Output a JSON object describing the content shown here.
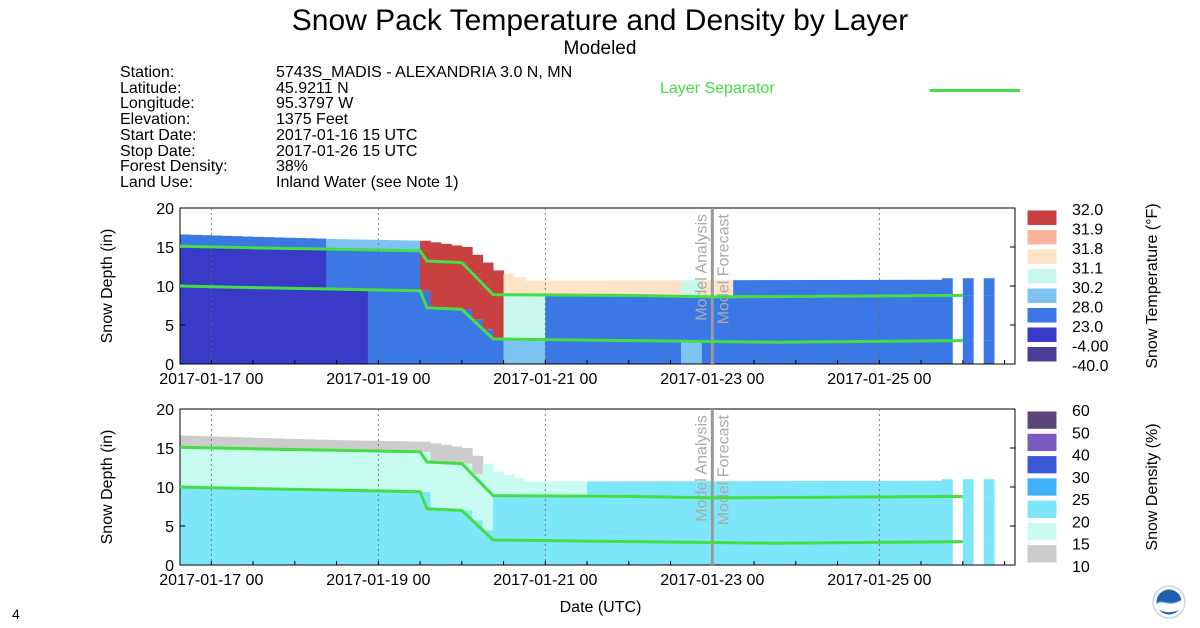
{
  "title": "Snow Pack Temperature and Density by Layer",
  "subtitle": "Modeled",
  "metadata": [
    {
      "key": "Station:",
      "value": "5743S_MADIS - ALEXANDRIA 3.0 N, MN"
    },
    {
      "key": "Latitude:",
      "value": "45.9211 N"
    },
    {
      "key": "Longitude:",
      "value": "95.3797 W"
    },
    {
      "key": "Elevation:",
      "value": "1375 Feet"
    },
    {
      "key": "Start Date:",
      "value": "2017-01-16 15 UTC"
    },
    {
      "key": "Stop Date:",
      "value": "2017-01-26 15 UTC"
    },
    {
      "key": "Forest Density:",
      "value": "38%"
    },
    {
      "key": "Land Use:",
      "value": "Inland Water (see Note 1)"
    }
  ],
  "legend": {
    "layer_separator_label": "Layer Separator",
    "layer_separator_color": "#44dd44"
  },
  "page_number": "4",
  "logo_name": "noaa-logo",
  "chart_data": [
    {
      "type": "area",
      "name": "temperature",
      "ylabel": "Snow Depth (in)",
      "colorbar_label": "Snow Temperature (°F)",
      "ylim": [
        0,
        20
      ],
      "yticks": [
        "0",
        "5",
        "10",
        "15",
        "20"
      ],
      "xlim": [
        "2017-01-16 15",
        "2017-01-26 15"
      ],
      "xticks": [
        "2017-01-17 00",
        "2017-01-19 00",
        "2017-01-21 00",
        "2017-01-23 00",
        "2017-01-25 00"
      ],
      "annotations": [
        "Model Analysis",
        "Model Forecast"
      ],
      "analysis_forecast_boundary": "2017-01-23 00",
      "colorbar": [
        {
          "label": "-40.0",
          "color": "#4a3d98"
        },
        {
          "label": "-4.00",
          "color": "#3a3ac8"
        },
        {
          "label": "23.0",
          "color": "#3b78e6"
        },
        {
          "label": "28.0",
          "color": "#7ec4f2"
        },
        {
          "label": "30.2",
          "color": "#c8f8ec"
        },
        {
          "label": "31.1",
          "color": "#fde4c8"
        },
        {
          "label": "31.8",
          "color": "#fcb49c"
        },
        {
          "label": "31.9",
          "color": "#c84040"
        },
        {
          "label": "32.0",
          "color": ""
        }
      ],
      "depth_total": [
        {
          "x": "2017-01-16 15",
          "y": 16.6
        },
        {
          "x": "2017-01-17 12",
          "y": 16.3
        },
        {
          "x": "2017-01-18 12",
          "y": 16.0
        },
        {
          "x": "2017-01-19 12",
          "y": 15.8
        },
        {
          "x": "2017-01-20 00",
          "y": 15.0
        },
        {
          "x": "2017-01-20 09",
          "y": 12.0
        },
        {
          "x": "2017-01-20 18",
          "y": 10.7
        },
        {
          "x": "2017-01-25 18",
          "y": 10.8
        }
      ],
      "separator_upper": [
        {
          "x": "2017-01-16 15",
          "y": 15.1
        },
        {
          "x": "2017-01-17 12",
          "y": 14.9
        },
        {
          "x": "2017-01-18 12",
          "y": 14.7
        },
        {
          "x": "2017-01-19 12",
          "y": 14.5
        },
        {
          "x": "2017-01-19 14",
          "y": 13.2
        },
        {
          "x": "2017-01-20 00",
          "y": 13.0
        },
        {
          "x": "2017-01-20 09",
          "y": 8.9
        },
        {
          "x": "2017-01-22 00",
          "y": 8.8
        },
        {
          "x": "2017-01-23 00",
          "y": 8.6
        },
        {
          "x": "2017-01-26 00",
          "y": 8.8
        }
      ],
      "separator_lower": [
        {
          "x": "2017-01-16 15",
          "y": 10.0
        },
        {
          "x": "2017-01-17 12",
          "y": 9.8
        },
        {
          "x": "2017-01-18 12",
          "y": 9.6
        },
        {
          "x": "2017-01-19 12",
          "y": 9.4
        },
        {
          "x": "2017-01-19 14",
          "y": 7.2
        },
        {
          "x": "2017-01-20 00",
          "y": 7.0
        },
        {
          "x": "2017-01-20 09",
          "y": 3.2
        },
        {
          "x": "2017-01-22 00",
          "y": 3.0
        },
        {
          "x": "2017-01-23 18",
          "y": 2.8
        },
        {
          "x": "2017-01-26 00",
          "y": 3.0
        }
      ]
    },
    {
      "type": "area",
      "name": "density",
      "ylabel": "Snow Depth (in)",
      "colorbar_label": "Snow Density (%)",
      "xlabel": "Date (UTC)",
      "ylim": [
        0,
        20
      ],
      "yticks": [
        "0",
        "5",
        "10",
        "15",
        "20"
      ],
      "xlim": [
        "2017-01-16 15",
        "2017-01-26 15"
      ],
      "xticks": [
        "2017-01-17 00",
        "2017-01-19 00",
        "2017-01-21 00",
        "2017-01-23 00",
        "2017-01-25 00"
      ],
      "annotations": [
        "Model Analysis",
        "Model Forecast"
      ],
      "analysis_forecast_boundary": "2017-01-23 00",
      "colorbar": [
        {
          "label": "10",
          "color": "#cccccc"
        },
        {
          "label": "15",
          "color": "#c8fcf0"
        },
        {
          "label": "20",
          "color": "#7ee6fa"
        },
        {
          "label": "25",
          "color": "#40b0f8"
        },
        {
          "label": "30",
          "color": "#3a58d8"
        },
        {
          "label": "40",
          "color": "#7a5cc0"
        },
        {
          "label": "50",
          "color": "#5a4678"
        },
        {
          "label": "60",
          "color": ""
        }
      ]
    }
  ]
}
